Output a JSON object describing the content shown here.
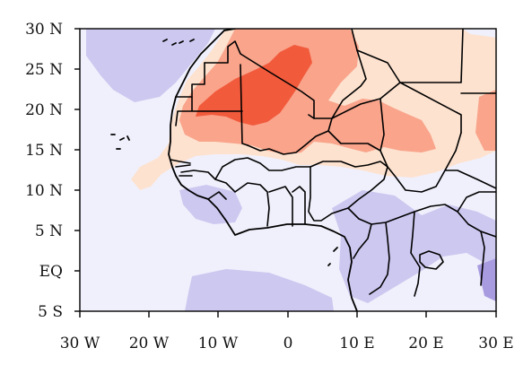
{
  "map": {
    "y_axis": {
      "ticks": [
        "30 N",
        "25 N",
        "20 N",
        "15 N",
        "10 N",
        "5 N",
        "EQ",
        "5 S"
      ],
      "values": [
        30,
        25,
        20,
        15,
        10,
        5,
        0,
        -5
      ]
    },
    "x_axis": {
      "ticks": [
        "30 W",
        "20 W",
        "10 W",
        "0",
        "10 E",
        "20 E",
        "30 E"
      ],
      "values": [
        -30,
        -20,
        -10,
        0,
        10,
        20,
        30
      ]
    },
    "extent": {
      "lon": [
        -30,
        30
      ],
      "lat": [
        -5,
        30
      ]
    },
    "shading_colors": {
      "strong_positive": "#f25a3c",
      "moderate_positive": "#f9a48b",
      "weak_positive": "#fde2cf",
      "near_zero": "#f0f0fc",
      "weak_negative": "#cdc8f0",
      "moderate_negative": "#a99be0"
    }
  }
}
